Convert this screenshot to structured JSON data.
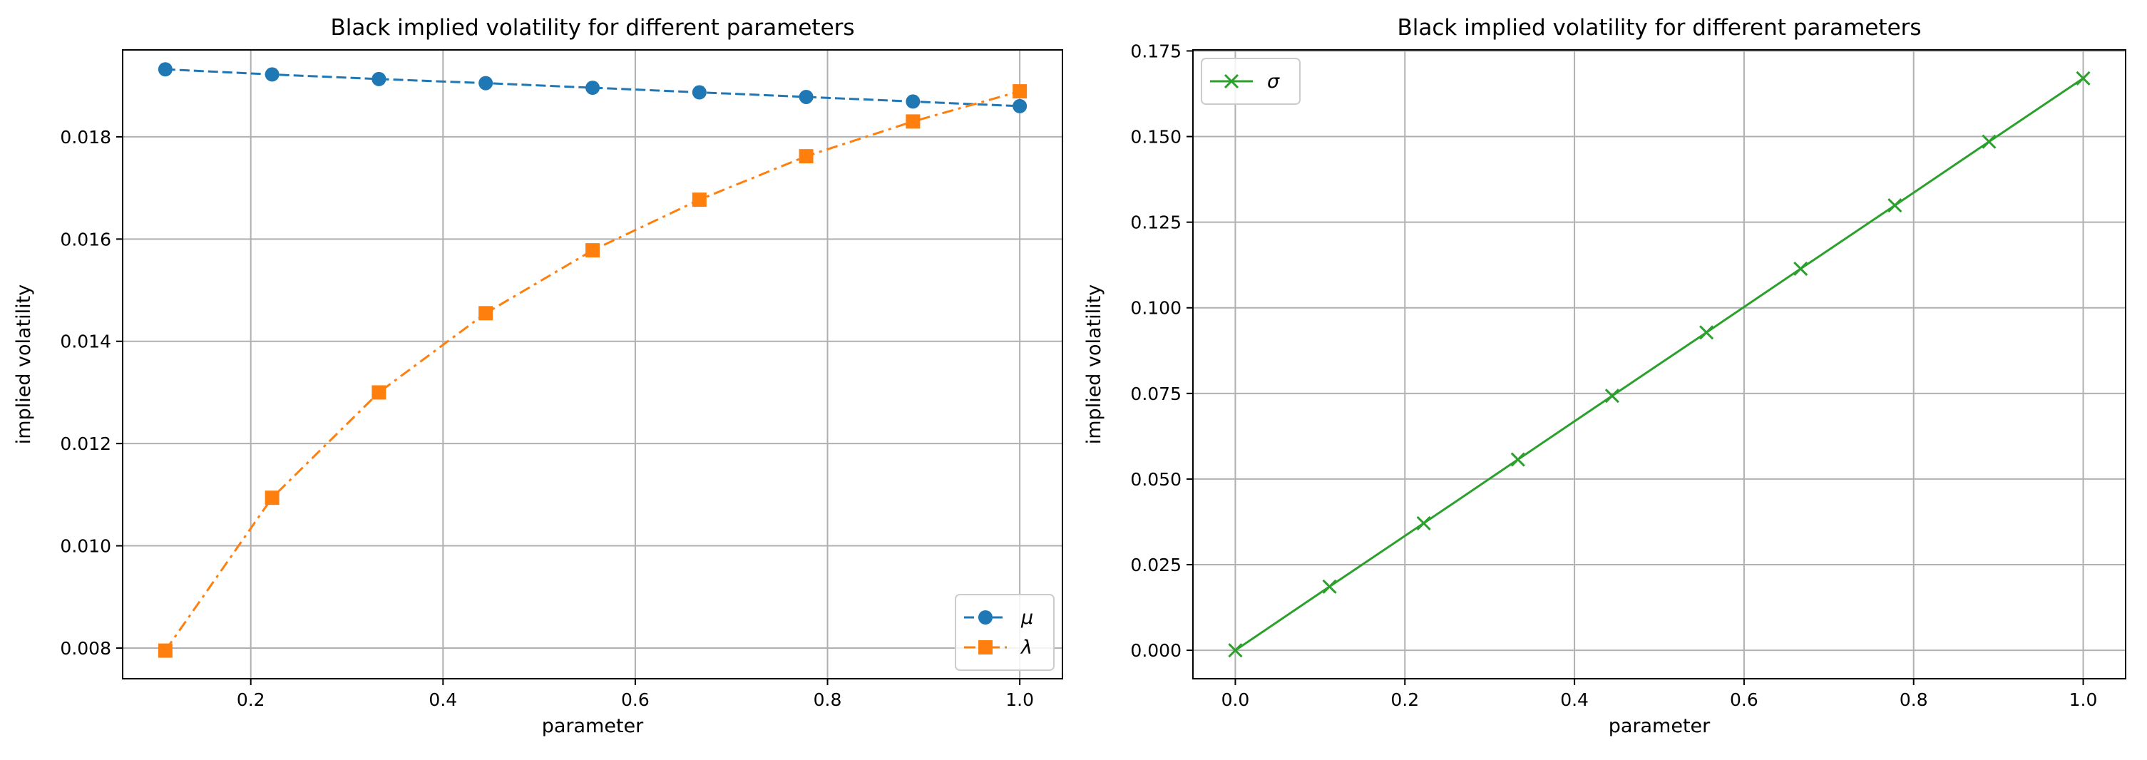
{
  "chart_data": [
    {
      "type": "line",
      "title": "Black implied volatility for different parameters",
      "xlabel": "parameter",
      "ylabel": "implied volatility",
      "xlim": [
        0.0667,
        1.0444
      ],
      "ylim": [
        0.0074,
        0.0197
      ],
      "xticks": [
        0.2,
        0.4,
        0.6,
        0.8,
        1.0
      ],
      "xtick_labels": [
        "0.2",
        "0.4",
        "0.6",
        "0.8",
        "1.0"
      ],
      "yticks": [
        0.008,
        0.01,
        0.012,
        0.014,
        0.016,
        0.018
      ],
      "ytick_labels": [
        "0.008",
        "0.010",
        "0.012",
        "0.014",
        "0.016",
        "0.018"
      ],
      "grid": true,
      "legend_position": "lower-right",
      "x": [
        0.1111,
        0.2222,
        0.3333,
        0.4444,
        0.5556,
        0.6667,
        0.7778,
        0.8889,
        1.0
      ],
      "series": [
        {
          "name": "μ",
          "color": "#1f77b4",
          "marker": "circle",
          "line_style": "dashed",
          "values": [
            0.01932,
            0.01922,
            0.01913,
            0.01905,
            0.01896,
            0.01887,
            0.01878,
            0.01869,
            0.0186
          ]
        },
        {
          "name": "λ",
          "color": "#ff7f0e",
          "marker": "square",
          "line_style": "dash-dot",
          "values": [
            0.00795,
            0.01094,
            0.013,
            0.01455,
            0.01578,
            0.01677,
            0.01762,
            0.0183,
            0.01889
          ]
        }
      ]
    },
    {
      "type": "line",
      "title": "Black implied volatility for different parameters",
      "xlabel": "parameter",
      "ylabel": "implied volatility",
      "xlim": [
        -0.05,
        1.05
      ],
      "ylim": [
        -0.0083,
        0.1753
      ],
      "xticks": [
        0.0,
        0.2,
        0.4,
        0.6,
        0.8,
        1.0
      ],
      "xtick_labels": [
        "0.0",
        "0.2",
        "0.4",
        "0.6",
        "0.8",
        "1.0"
      ],
      "yticks": [
        0.0,
        0.025,
        0.05,
        0.075,
        0.1,
        0.125,
        0.15,
        0.175
      ],
      "ytick_labels": [
        "0.000",
        "0.025",
        "0.050",
        "0.075",
        "0.100",
        "0.125",
        "0.150",
        "0.175"
      ],
      "grid": true,
      "legend_position": "upper-left",
      "x": [
        0.0,
        0.1111,
        0.2222,
        0.3333,
        0.4444,
        0.5556,
        0.6667,
        0.7778,
        0.8889,
        1.0
      ],
      "series": [
        {
          "name": "σ",
          "color": "#2ca02c",
          "marker": "x",
          "line_style": "solid",
          "values": [
            0.0,
            0.0186,
            0.0371,
            0.0557,
            0.0743,
            0.0928,
            0.1114,
            0.1299,
            0.1485,
            0.167
          ]
        }
      ]
    }
  ]
}
